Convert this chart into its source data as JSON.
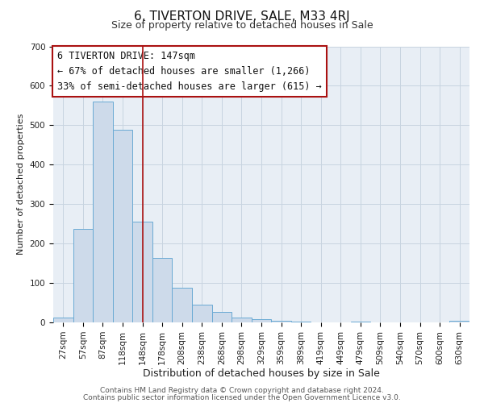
{
  "title": "6, TIVERTON DRIVE, SALE, M33 4RJ",
  "subtitle": "Size of property relative to detached houses in Sale",
  "xlabel": "Distribution of detached houses by size in Sale",
  "ylabel": "Number of detached properties",
  "bar_labels": [
    "27sqm",
    "57sqm",
    "87sqm",
    "118sqm",
    "148sqm",
    "178sqm",
    "208sqm",
    "238sqm",
    "268sqm",
    "298sqm",
    "329sqm",
    "359sqm",
    "389sqm",
    "419sqm",
    "449sqm",
    "479sqm",
    "509sqm",
    "540sqm",
    "570sqm",
    "600sqm",
    "630sqm"
  ],
  "bar_values": [
    12,
    238,
    560,
    488,
    255,
    163,
    87,
    45,
    27,
    13,
    9,
    4,
    2,
    0,
    0,
    3,
    0,
    0,
    0,
    0,
    4
  ],
  "bar_color": "#cddaea",
  "bar_edge_color": "#6aaad4",
  "grid_color": "#c8d4e0",
  "bg_color": "#e8eef5",
  "vline_x": 4.0,
  "vline_color": "#aa1111",
  "annotation_line1": "6 TIVERTON DRIVE: 147sqm",
  "annotation_line2": "← 67% of detached houses are smaller (1,266)",
  "annotation_line3": "33% of semi-detached houses are larger (615) →",
  "annotation_box_edge": "#aa1111",
  "footer1": "Contains HM Land Registry data © Crown copyright and database right 2024.",
  "footer2": "Contains public sector information licensed under the Open Government Licence v3.0.",
  "ylim": [
    0,
    700
  ],
  "yticks": [
    0,
    100,
    200,
    300,
    400,
    500,
    600,
    700
  ],
  "title_fontsize": 11,
  "subtitle_fontsize": 9,
  "xlabel_fontsize": 9,
  "ylabel_fontsize": 8,
  "tick_fontsize": 7.5,
  "annot_fontsize": 8.5,
  "footer_fontsize": 6.5
}
